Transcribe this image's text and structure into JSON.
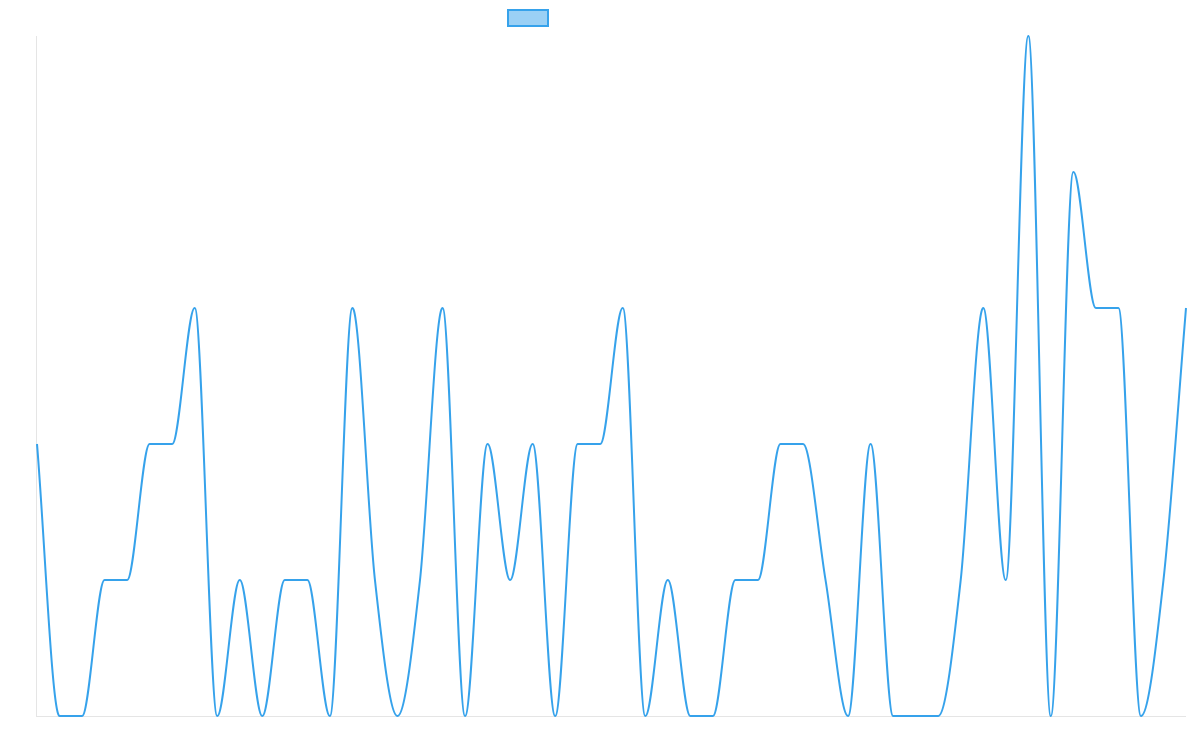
{
  "chart_data": {
    "type": "line",
    "title": "",
    "xlabel": "",
    "ylabel": "",
    "ylim": [
      0,
      5
    ],
    "grid": false,
    "legend": "top-center",
    "series": [
      {
        "name": "",
        "color": "#36A2EB",
        "legend_fill": "#9AD0F5",
        "values": [
          2,
          0,
          0,
          1,
          1,
          2,
          2,
          3,
          0,
          1,
          0,
          1,
          1,
          0,
          3,
          1,
          0,
          1,
          3,
          0,
          2,
          1,
          2,
          0,
          2,
          2,
          3,
          0,
          1,
          0,
          0,
          1,
          1,
          2,
          2,
          1,
          0,
          2,
          0,
          0,
          0,
          1,
          3,
          1,
          5,
          0,
          4,
          3,
          3,
          0,
          1,
          3
        ]
      }
    ]
  }
}
